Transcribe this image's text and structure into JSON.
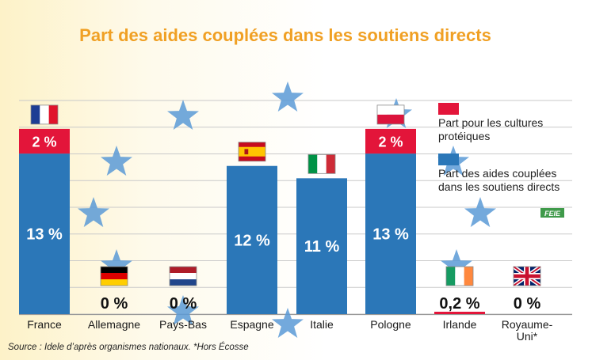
{
  "chart_data": {
    "type": "bar",
    "title": "Part des aides couplées dans les soutiens directs",
    "categories": [
      "France",
      "Allemagne",
      "Pays-Bas",
      "Espagne",
      "Italie",
      "Pologne",
      "Irlande",
      "Royaume-\nUni*"
    ],
    "series": [
      {
        "name": "Part des aides couplées dans les soutiens directs",
        "color": "#2b77b8",
        "values": [
          13,
          0,
          0,
          12,
          11,
          13,
          0.2,
          0
        ],
        "labels": [
          "13 %",
          "0 %",
          "0 %",
          "12 %",
          "11 %",
          "13 %",
          "0,2 %",
          "0 %"
        ]
      },
      {
        "name": "Part pour les cultures protéiques",
        "color": "#e3153a",
        "values": [
          2,
          0,
          0,
          0,
          0,
          2,
          0,
          0
        ],
        "labels": [
          "2 %",
          "",
          "",
          "",
          "",
          "2 %",
          "",
          ""
        ]
      }
    ],
    "flags": [
      "france",
      "germany",
      "netherlands",
      "spain",
      "italy",
      "poland",
      "ireland",
      "uk"
    ],
    "ylim": [
      0,
      17.3
    ],
    "grid": true,
    "legend_position": "right",
    "legend": [
      {
        "label": "Part pour les cultures\nprotéiques",
        "color": "#e3153a"
      },
      {
        "label": "Part des aides couplées\ndans les soutiens directs",
        "color": "#2b77b8"
      }
    ],
    "source": "Source : Idele d’après organismes nationaux.   *Hors Écosse",
    "logo_text": "FEIE"
  },
  "colors": {
    "title": "#f0a024",
    "grid": "#c9c9c9",
    "axis_label": "#1a1a1a",
    "star": "#5a9ad6"
  }
}
